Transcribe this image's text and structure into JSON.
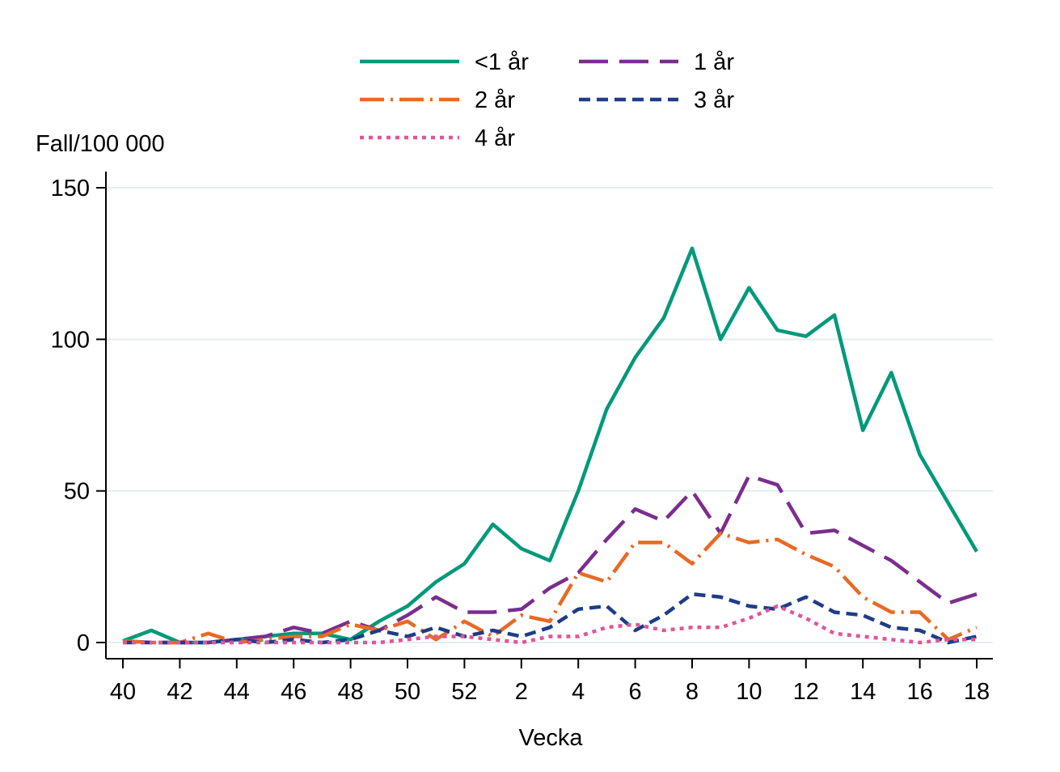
{
  "chart_data": {
    "type": "line",
    "title": "",
    "xlabel": "Vecka",
    "ylabel": "Fall/100 000",
    "ylim": [
      0,
      150
    ],
    "yticks": [
      0,
      50,
      100,
      150
    ],
    "grid": true,
    "legend_position": "top",
    "categories": [
      "40",
      "41",
      "42",
      "43",
      "44",
      "45",
      "46",
      "47",
      "48",
      "49",
      "50",
      "51",
      "52",
      "1",
      "2",
      "3",
      "4",
      "5",
      "6",
      "7",
      "8",
      "9",
      "10",
      "11",
      "12",
      "13",
      "14",
      "15",
      "16",
      "17",
      "18"
    ],
    "xtick_labels": [
      "40",
      "42",
      "44",
      "46",
      "48",
      "50",
      "52",
      "2",
      "4",
      "6",
      "8",
      "10",
      "12",
      "14",
      "16",
      "18"
    ],
    "series": [
      {
        "name": "<1 år",
        "color": "#00997a",
        "dash": "solid",
        "values": [
          0.5,
          4,
          0,
          0,
          1,
          2,
          3,
          3,
          1,
          7,
          12,
          20,
          26,
          39,
          31,
          27,
          50,
          77,
          94,
          107,
          130,
          100,
          117,
          103,
          101,
          108,
          70,
          89,
          62,
          46,
          30
        ]
      },
      {
        "name": "1 år",
        "color": "#7b2d8e",
        "dash": "longdash",
        "values": [
          0.5,
          0,
          0,
          0,
          1,
          2,
          5,
          3,
          7,
          4,
          9,
          15,
          10,
          10,
          11,
          18,
          23,
          34,
          44,
          40,
          50,
          36,
          55,
          52,
          36,
          37,
          32,
          27,
          20,
          13,
          16
        ]
      },
      {
        "name": "2 år",
        "color": "#e86a24",
        "dash": "dashdot",
        "values": [
          0.5,
          0,
          0,
          3,
          0,
          1,
          2,
          2,
          6,
          4,
          7,
          1,
          7,
          2,
          9,
          7,
          23,
          20,
          33,
          33,
          26,
          36,
          33,
          34,
          29,
          25,
          15,
          10,
          10,
          1,
          5
        ]
      },
      {
        "name": "3 år",
        "color": "#1f3c88",
        "dash": "dash",
        "values": [
          0,
          0,
          0,
          0,
          1,
          0,
          1,
          0,
          1,
          4,
          2,
          5,
          2,
          4,
          2,
          5,
          11,
          12,
          4,
          9,
          16,
          15,
          12,
          11,
          15,
          10,
          9,
          5,
          4,
          0,
          2
        ]
      },
      {
        "name": "4 år",
        "color": "#e0559b",
        "dash": "dot",
        "values": [
          0,
          0,
          0,
          0,
          0,
          0,
          0,
          0,
          0,
          0,
          1,
          2,
          2,
          1,
          0,
          2,
          2,
          5,
          6,
          4,
          5,
          5,
          8,
          12,
          8,
          3,
          2,
          1,
          0,
          1,
          1
        ]
      }
    ]
  }
}
